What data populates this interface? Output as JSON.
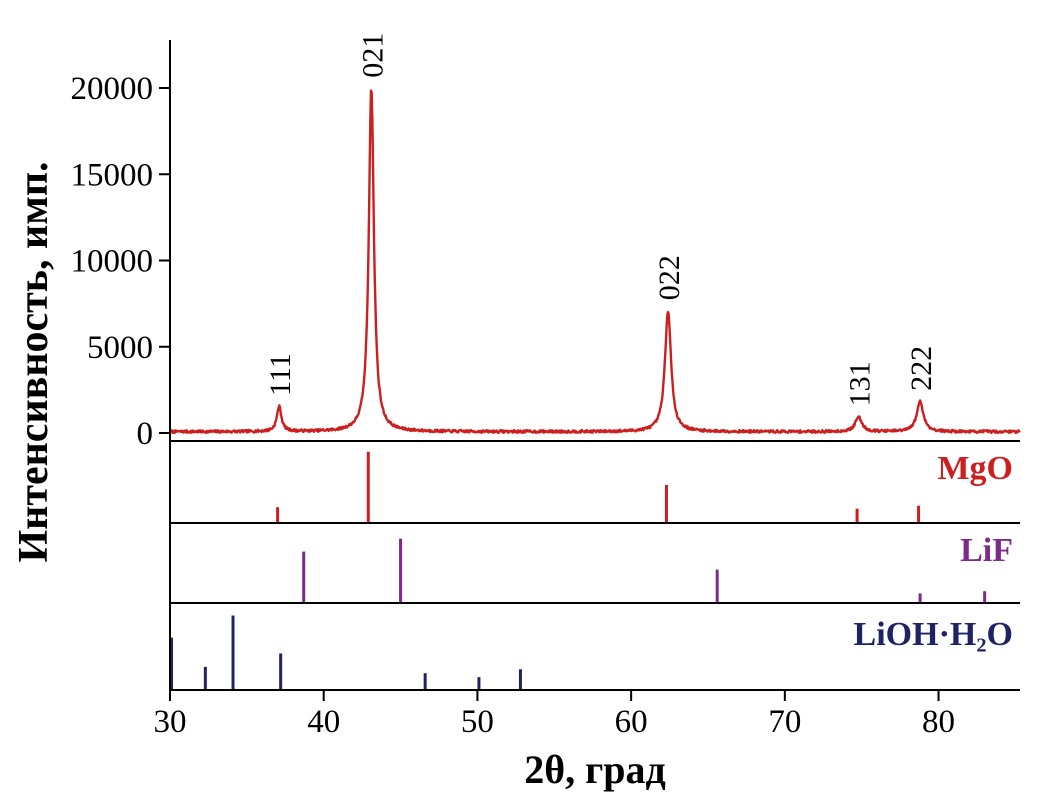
{
  "chart_data": {
    "type": "line",
    "title": "",
    "xlabel": "2θ, град",
    "ylabel": "Интенсивность, имп.",
    "xlim": [
      30,
      85.3
    ],
    "x_ticks": [
      30,
      40,
      50,
      60,
      70,
      80
    ],
    "grid": false,
    "background": "#ffffff",
    "axis_color": "#000000",
    "main_panel": {
      "ylim": [
        0,
        22800
      ],
      "y_ticks": [
        0,
        5000,
        10000,
        15000,
        20000
      ],
      "color": "#cc1f1f",
      "noise_amplitude": 150,
      "peaks": [
        {
          "two_theta": 37.1,
          "intensity": 1450,
          "width": 0.18,
          "label": "111"
        },
        {
          "two_theta": 43.1,
          "intensity": 19900,
          "width": 0.2,
          "label": "021"
        },
        {
          "two_theta": 62.4,
          "intensity": 7000,
          "width": 0.24,
          "label": "022"
        },
        {
          "two_theta": 74.8,
          "intensity": 850,
          "width": 0.26,
          "label": "131"
        },
        {
          "two_theta": 78.8,
          "intensity": 1750,
          "width": 0.26,
          "label": "222"
        }
      ]
    },
    "reference_panels": [
      {
        "name": "MgO",
        "color": "#cc1f1f",
        "sticks": [
          [
            37.0,
            0.2
          ],
          [
            42.9,
            0.95
          ],
          [
            62.3,
            0.5
          ],
          [
            74.7,
            0.18
          ],
          [
            78.7,
            0.22
          ]
        ]
      },
      {
        "name": "LiF",
        "color": "#7d2b8b",
        "sticks": [
          [
            38.7,
            0.7
          ],
          [
            45.0,
            0.88
          ],
          [
            65.6,
            0.45
          ],
          [
            78.8,
            0.12
          ],
          [
            83.0,
            0.15
          ]
        ]
      },
      {
        "name": "LiOH·H₂O",
        "color": "#1f2366",
        "sticks": [
          [
            30.1,
            0.65
          ],
          [
            32.3,
            0.28
          ],
          [
            34.1,
            0.93
          ],
          [
            37.2,
            0.45
          ],
          [
            46.6,
            0.2
          ],
          [
            50.1,
            0.15
          ],
          [
            52.8,
            0.25
          ]
        ]
      }
    ]
  }
}
